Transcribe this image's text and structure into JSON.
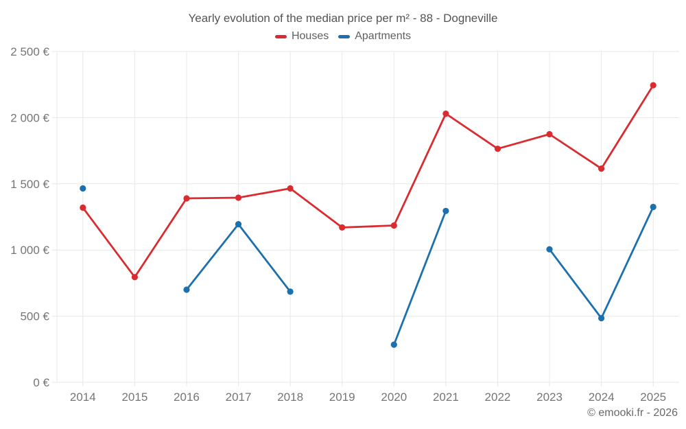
{
  "chart": {
    "footer": "© emooki.fr - 2026"
  },
  "chart_data": {
    "type": "line",
    "title": "Yearly evolution of the median price per m² - 88 - Dogneville",
    "categories": [
      "2014",
      "2015",
      "2016",
      "2017",
      "2018",
      "2019",
      "2020",
      "2021",
      "2022",
      "2023",
      "2024",
      "2025"
    ],
    "series": [
      {
        "name": "Houses",
        "color": "#da2c30",
        "values": [
          1320,
          795,
          1390,
          1395,
          1465,
          1170,
          1185,
          2030,
          1765,
          1875,
          1615,
          2245
        ]
      },
      {
        "name": "Apartments",
        "color": "#1c70ad",
        "values": [
          1465,
          null,
          700,
          1195,
          685,
          null,
          285,
          1295,
          null,
          1005,
          485,
          1325
        ]
      }
    ],
    "ylim": [
      0,
      2500
    ],
    "ytick_step": 500,
    "ytick_labels": [
      "0 €",
      "500 €",
      "1 000 €",
      "1 500 €",
      "2 000 €",
      "2 500 €"
    ],
    "grid": true,
    "legend_position": "top",
    "colors": {
      "grid": "#e7e7e7",
      "axis_text": "#757575",
      "title_text": "#545454",
      "footer_text": "#686868",
      "background": "#ffffff"
    }
  }
}
